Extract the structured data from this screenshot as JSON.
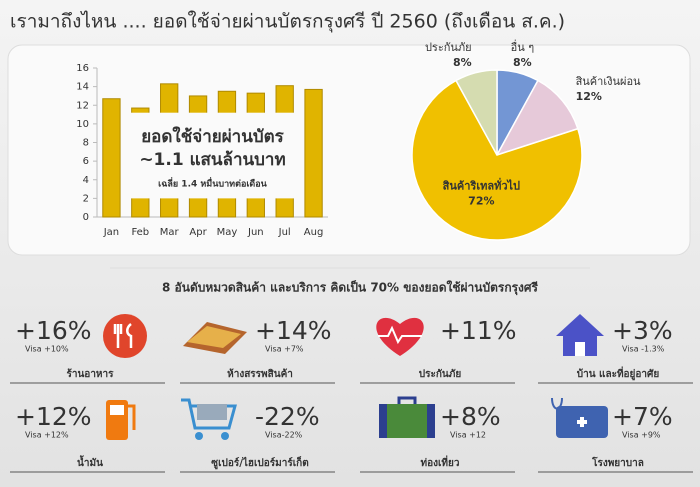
{
  "title": "เรามาถึงไหน .... ยอดใช้จ่ายผ่านบัตรกรุงศรี ปี 2560 (ถึงเดือน ส.ค.)",
  "chart_data": [
    {
      "type": "bar",
      "categories": [
        "Jan",
        "Feb",
        "Mar",
        "Apr",
        "May",
        "Jun",
        "Jul",
        "Aug"
      ],
      "values": [
        12.7,
        11.7,
        14.3,
        13.0,
        13.5,
        13.3,
        14.1,
        13.7
      ],
      "color": "#e0b400",
      "ylim": [
        0,
        16
      ],
      "yticks": [
        0,
        2,
        4,
        6,
        8,
        10,
        12,
        14,
        16
      ],
      "grid": false,
      "annotations": [
        "ยอดใช้จ่ายผ่านบัตร",
        "~1.1 แสนล้านบาท",
        "เฉลี่ย 1.4 หมื่นบาทต่อเดือน"
      ]
    },
    {
      "type": "pie",
      "categories": [
        "อื่น ๆ",
        "สินค้าเงินผ่อน",
        "สินค้าริเทลทั่วไป",
        "ประกันภัย"
      ],
      "values": [
        8,
        12,
        72,
        8
      ],
      "value_labels": [
        "8%",
        "12%",
        "72%",
        "8%"
      ],
      "colors": [
        "#7396d4",
        "#e6c9d9",
        "#f0c000",
        "#d5dcb0"
      ]
    }
  ],
  "section": {
    "title": "8 อันดับหมวดสินค้า และบริการ คิดเป็น 70% ของยอดใช้ผ่านบัตรกรุงศรี",
    "items": [
      {
        "growth": "+16%",
        "visa": "Visa +10%",
        "name": "ร้านอาหาร"
      },
      {
        "growth": "+14%",
        "visa": "Visa +7%",
        "name": "ห้างสรรพสินค้า"
      },
      {
        "growth": "+11%",
        "name": "ประกันภัย"
      },
      {
        "growth": "+3%",
        "visa": "Visa -1.3%",
        "name": "บ้าน และที่อยู่อาศัย"
      },
      {
        "growth": "+12%",
        "visa": "Visa +12%",
        "name": "น้ำมัน"
      },
      {
        "growth": "-22%",
        "visa": "Visa-22%",
        "name": "ซูเปอร์/ไฮเปอร์มาร์เก็ต"
      },
      {
        "growth": "+8%",
        "visa": "Visa +12",
        "name": "ท่องเที่ยว"
      },
      {
        "growth": "+7%",
        "visa": "Visa +9%",
        "name": "โรงพยาบาล"
      }
    ]
  }
}
